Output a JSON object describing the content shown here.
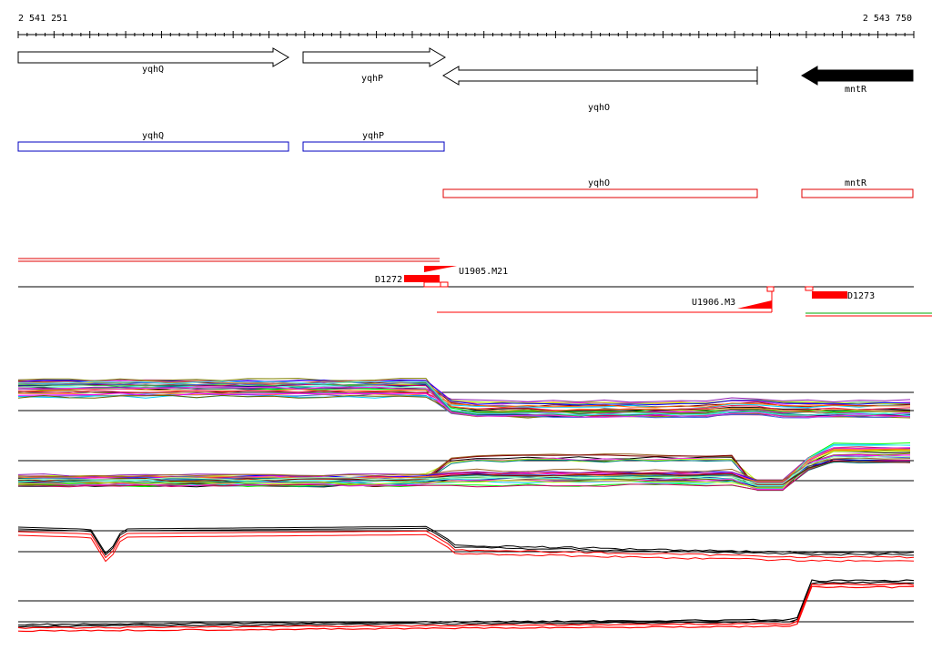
{
  "ruler": {
    "start_label": "2 541 251",
    "end_label": "2 543 750"
  },
  "genes": [
    {
      "name": "yqhQ",
      "strand": "+",
      "fill": "#ffffff"
    },
    {
      "name": "yqhP",
      "strand": "+",
      "fill": "#ffffff"
    },
    {
      "name": "yqhO",
      "strand": "-",
      "fill": "#ffffff"
    },
    {
      "name": "mntR",
      "strand": "-",
      "fill": "#000000"
    }
  ],
  "plus_boxes": [
    {
      "label": "yqhQ",
      "color": "#0000c0"
    },
    {
      "label": "yqhP",
      "color": "#0000c0"
    }
  ],
  "minus_boxes": [
    {
      "label": "yqhO",
      "color": "#e00000"
    },
    {
      "label": "mntR",
      "color": "#e00000"
    }
  ],
  "features": {
    "d1272": "D1272",
    "u1905": "U1905.M21",
    "u1906": "U1906.M3",
    "d1273": "D1273"
  },
  "colors": {
    "plus_strand": "#0000c0",
    "minus_strand": "#e00000",
    "feature_red": "#ff0000",
    "expression_black": "#000000",
    "expression_red": "#ff0000"
  }
}
